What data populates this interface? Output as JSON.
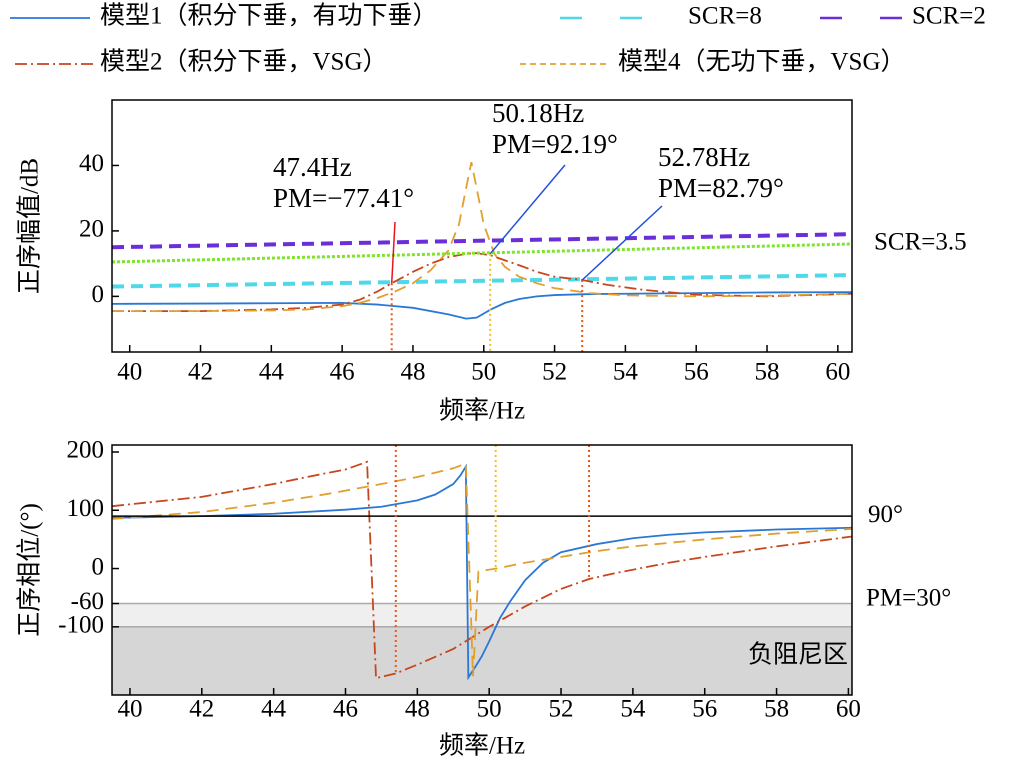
{
  "chart_data": [
    {
      "type": "line",
      "x_label": "频率/Hz",
      "y_label": "正序幅值/dB",
      "xlim": [
        39.5,
        60.4
      ],
      "ylim": [
        -17,
        60
      ],
      "xticks": [
        40,
        42,
        44,
        46,
        48,
        50,
        52,
        54,
        56,
        58,
        60
      ],
      "yticks": [
        0,
        20,
        40
      ],
      "series": [
        {
          "name": "模型1（积分下垂，有功下垂）",
          "color": "#2a78d6",
          "style": "solid",
          "width": 1.8,
          "x": [
            39.5,
            42,
            44,
            46,
            47,
            48,
            49,
            49.5,
            49.8,
            50.2,
            50.6,
            51,
            51.5,
            52,
            53,
            54,
            56,
            58,
            60.4
          ],
          "values": [
            -2.3,
            -2.2,
            -2.1,
            -2,
            -2.5,
            -3.5,
            -5.5,
            -6.8,
            -6.5,
            -4,
            -2,
            -0.8,
            0,
            0.4,
            0.7,
            0.8,
            1,
            1.2,
            1.3
          ]
        },
        {
          "name": "SCR=8",
          "color": "#4fd8e8",
          "style": "dashed",
          "width": 4,
          "x": [
            39.5,
            60.4
          ],
          "values": [
            3,
            6.5
          ]
        },
        {
          "name": "SCR=2",
          "color": "#6a2fd8",
          "style": "dashed",
          "width": 4,
          "x": [
            39.5,
            60.4
          ],
          "values": [
            15,
            19
          ]
        },
        {
          "name": "模型2（积分下垂，VSG）",
          "color": "#c8461e",
          "style": "dashdot",
          "width": 1.8,
          "x": [
            39.5,
            42,
            44,
            45,
            46,
            46.5,
            47,
            47.4,
            48,
            48.5,
            49,
            49.5,
            49.8,
            50.2,
            50.6,
            51,
            51.5,
            52,
            52.78,
            53.5,
            54.5,
            56,
            58,
            60.4
          ],
          "values": [
            -4.5,
            -4.5,
            -4,
            -3.5,
            -2.5,
            -1,
            1.5,
            4,
            7.5,
            10,
            12,
            13,
            13.2,
            12.5,
            11,
            9.5,
            7.5,
            6,
            5,
            3.5,
            2,
            0.5,
            0,
            0.8
          ]
        },
        {
          "name": "模型4（无功下垂，VSG）",
          "color": "#e0a030",
          "style": "dashed",
          "width": 1.8,
          "x": [
            39.5,
            42,
            44,
            45,
            46,
            46.5,
            47,
            47.5,
            48,
            48.5,
            49,
            49.3,
            49.5,
            49.65,
            49.8,
            50,
            50.3,
            50.6,
            51,
            51.5,
            52,
            53,
            54,
            56,
            58,
            60.4
          ],
          "values": [
            -4.5,
            -4.5,
            -4.3,
            -4,
            -3,
            -2,
            -0.5,
            1.5,
            4,
            8,
            14,
            22,
            33,
            41,
            33,
            22,
            13,
            9,
            6,
            4,
            2.5,
            1,
            0.3,
            0,
            0.2,
            0.8
          ]
        },
        {
          "name": "SCR=3.5",
          "color": "#7ee62a",
          "style": "dotted",
          "width": 3,
          "legend": false,
          "label_color": "#a8a8a8",
          "x": [
            39.5,
            60.4
          ],
          "values": [
            10.5,
            16
          ]
        }
      ],
      "annotations": [
        {
          "lines": [
            "47.4Hz",
            "PM=−77.41°"
          ],
          "color": "#e8141c",
          "x": 47.4,
          "y": 4,
          "guide_color": "#e85a1a"
        },
        {
          "lines": [
            "50.18Hz",
            "PM=92.19°"
          ],
          "color": "#1f4fe0",
          "x": 50.18,
          "y": 13,
          "guide_color": "#f0c020"
        },
        {
          "lines": [
            "52.78Hz",
            "PM=82.79°"
          ],
          "color": "#1f4fe0",
          "x": 52.78,
          "y": 5,
          "guide_color": "#e85a1a"
        }
      ]
    },
    {
      "type": "line",
      "x_label": "频率/Hz",
      "y_label": "正序相位/(°)",
      "xlim": [
        39.5,
        60.1
      ],
      "ylim": [
        -217,
        212
      ],
      "xticks": [
        40,
        42,
        44,
        46,
        48,
        50,
        52,
        54,
        56,
        58,
        60
      ],
      "yticks": [
        -100,
        -60,
        0,
        100,
        200
      ],
      "regions": [
        {
          "from": -60,
          "to": -100,
          "color": "#efefef",
          "label": "PM=30°",
          "label_color": "#e8141c"
        },
        {
          "from": -100,
          "color": "#d6d6d6",
          "label": "负阻尼区",
          "label_color": "#9a9a9a"
        }
      ],
      "reference_lines": [
        {
          "value": 90,
          "label": "90°",
          "color": "#000000"
        }
      ],
      "guides": [
        {
          "x": 47.4,
          "y": -180,
          "color": "#e85a1a"
        },
        {
          "x": 50.18,
          "y": -10,
          "color": "#f0c020"
        },
        {
          "x": 52.78,
          "y": -20,
          "color": "#e85a1a"
        }
      ],
      "series": [
        {
          "name": "模型1（积分下垂，有功下垂）",
          "color": "#2a78d6",
          "style": "solid",
          "width": 1.8,
          "x": [
            39.5,
            42,
            44,
            46,
            47,
            48,
            48.5,
            49,
            49.2,
            49.35,
            49.42,
            49.6,
            49.8,
            50,
            50.3,
            50.6,
            51,
            51.5,
            52,
            53,
            54,
            55,
            56,
            58,
            60.1
          ],
          "values": [
            87,
            90,
            94,
            101,
            106,
            117,
            127,
            145,
            160,
            175,
            -187,
            -170,
            -150,
            -125,
            -85,
            -55,
            -20,
            10,
            28,
            42,
            52,
            58,
            62,
            67,
            70
          ]
        },
        {
          "name": "模型2（积分下垂，VSG）",
          "color": "#c8461e",
          "style": "dashdot",
          "width": 1.8,
          "x": [
            39.5,
            42,
            44,
            45,
            46,
            46.6,
            46.85,
            47.4,
            48,
            49,
            50,
            51,
            52,
            52.78,
            53.5,
            55,
            56,
            58,
            60.1
          ],
          "values": [
            107,
            123,
            145,
            158,
            170,
            183,
            -188,
            -180,
            -165,
            -138,
            -100,
            -65,
            -35,
            -18,
            -8,
            10,
            20,
            38,
            55
          ]
        },
        {
          "name": "模型4（无功下垂，VSG）",
          "color": "#e0a030",
          "style": "dashed",
          "width": 1.8,
          "x": [
            39.5,
            42,
            44,
            45.5,
            47,
            48,
            49,
            49.35,
            49.55,
            49.7,
            50.2,
            51,
            52,
            53,
            54,
            56,
            58,
            60.1
          ],
          "values": [
            85,
            97,
            113,
            128,
            145,
            157,
            172,
            180,
            -185,
            -5,
            0,
            10,
            20,
            30,
            38,
            50,
            60,
            68
          ]
        }
      ]
    }
  ]
}
